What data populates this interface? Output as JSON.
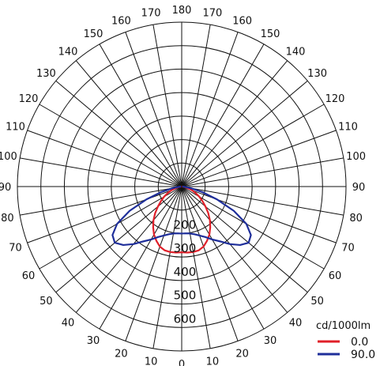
{
  "chart_data": {
    "type": "polar",
    "unit_label": "cd/1000lm",
    "radial_ticks": [
      100,
      200,
      300,
      400,
      500,
      600
    ],
    "radial_max": 700,
    "ring_label_values": [
      "200",
      "300",
      "400",
      "500",
      "600"
    ],
    "angle_ticks_deg": [
      0,
      10,
      20,
      30,
      40,
      50,
      60,
      70,
      80,
      90,
      100,
      110,
      120,
      130,
      140,
      150,
      160,
      170,
      180
    ],
    "angle_labels": [
      "0",
      "10",
      "20",
      "30",
      "40",
      "50",
      "60",
      "70",
      "80",
      "90",
      "100",
      "110",
      "120",
      "130",
      "140",
      "150",
      "160",
      "170",
      "180"
    ],
    "grid": true,
    "legend_position": "bottom-right",
    "series": [
      {
        "name": "0.0",
        "color": "#e0202a",
        "symmetric": true,
        "angles_deg": [
          0,
          5,
          10,
          15,
          20,
          25,
          30,
          35,
          40,
          45,
          50,
          55,
          60,
          65,
          70,
          75,
          80,
          85,
          90
        ],
        "values": [
          280,
          282,
          283,
          281,
          272,
          255,
          236,
          212,
          187,
          160,
          132,
          108,
          87,
          66,
          47,
          28,
          14,
          6,
          2
        ]
      },
      {
        "name": "90.0",
        "color": "#1e2e9a",
        "symmetric": true,
        "angles_deg": [
          0,
          5,
          10,
          15,
          20,
          25,
          30,
          35,
          40,
          45,
          50,
          55,
          60,
          65,
          70,
          75,
          80,
          85,
          90
        ],
        "values": [
          200,
          200,
          203,
          210,
          222,
          237,
          260,
          285,
          320,
          352,
          372,
          360,
          318,
          245,
          160,
          90,
          40,
          12,
          3
        ]
      }
    ]
  }
}
